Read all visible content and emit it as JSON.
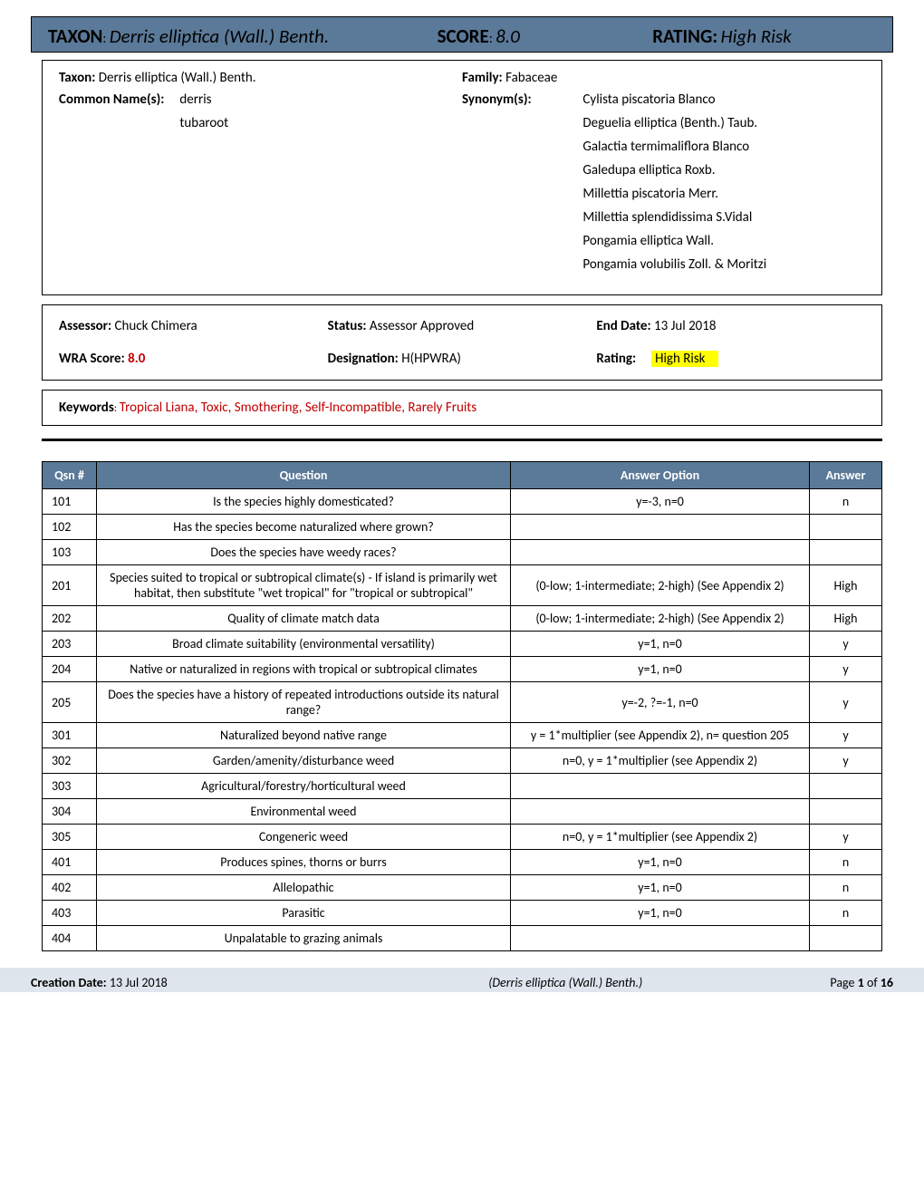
{
  "header": {
    "taxon_label": "TAXON",
    "taxon_value": "Derris elliptica (Wall.) Benth.",
    "score_label": "SCORE",
    "score_value": "8.0",
    "rating_label": "RATING:",
    "rating_value": "High Risk",
    "bg_color": "#5b7998"
  },
  "summary": {
    "taxon_label": "Taxon:",
    "taxon_value": "Derris elliptica (Wall.) Benth.",
    "family_label": "Family:",
    "family_value": "Fabaceae",
    "common_label": "Common Name(s):",
    "common_names": [
      "derris",
      "tubaroot"
    ],
    "synonym_label": "Synonym(s):",
    "synonyms": [
      "Cylista piscatoria Blanco",
      "Deguelia elliptica (Benth.) Taub.",
      "Galactia termimaliflora Blanco",
      "Galedupa elliptica Roxb.",
      "Millettia piscatoria Merr.",
      "Millettia splendidissima S.Vidal",
      "Pongamia elliptica Wall.",
      "Pongamia volubilis Zoll. & Moritzi"
    ]
  },
  "status": {
    "assessor_label": "Assessor:",
    "assessor_value": "Chuck Chimera",
    "status_label": "Status:",
    "status_value": "Assessor Approved",
    "end_date_label": "End Date:",
    "end_date_value": "13 Jul 2018",
    "wra_label": "WRA Score:",
    "wra_value": "8.0",
    "designation_label": "Designation:",
    "designation_value": "H(HPWRA)",
    "rating_label": "Rating:",
    "rating_value": "High Risk",
    "highlight_color": "#ffff00",
    "score_color": "#c00000"
  },
  "keywords": {
    "label": "Keywords",
    "value": "Tropical Liana, Toxic, Smothering, Self-Incompatible, Rarely Fruits",
    "color": "#c00000"
  },
  "table": {
    "header_bg": "#5b7998",
    "header_fg": "#ffffff",
    "columns": [
      "Qsn #",
      "Question",
      "Answer Option",
      "Answer"
    ],
    "rows": [
      [
        "101",
        "Is the species highly domesticated?",
        "y=-3, n=0",
        "n"
      ],
      [
        "102",
        "Has the species become naturalized where grown?",
        "",
        ""
      ],
      [
        "103",
        "Does the species have weedy races?",
        "",
        ""
      ],
      [
        "201",
        "Species suited to tropical or subtropical climate(s) - If island is primarily wet habitat, then substitute \"wet tropical\" for \"tropical or subtropical\"",
        "(0-low; 1-intermediate; 2-high)  (See Appendix 2)",
        "High"
      ],
      [
        "202",
        "Quality of climate match data",
        "(0-low; 1-intermediate; 2-high)  (See Appendix 2)",
        "High"
      ],
      [
        "203",
        "Broad climate suitability (environmental versatility)",
        "y=1, n=0",
        "y"
      ],
      [
        "204",
        "Native or naturalized in regions with tropical or subtropical climates",
        "y=1, n=0",
        "y"
      ],
      [
        "205",
        "Does the species have a history of repeated introductions outside its natural range?",
        "y=-2, ?=-1, n=0",
        "y"
      ],
      [
        "301",
        "Naturalized beyond native range",
        "y = 1*multiplier (see Appendix 2), n= question 205",
        "y"
      ],
      [
        "302",
        "Garden/amenity/disturbance weed",
        "n=0, y = 1*multiplier (see Appendix 2)",
        "y"
      ],
      [
        "303",
        "Agricultural/forestry/horticultural weed",
        "",
        ""
      ],
      [
        "304",
        "Environmental weed",
        "",
        ""
      ],
      [
        "305",
        "Congeneric weed",
        "n=0, y = 1*multiplier (see Appendix 2)",
        "y"
      ],
      [
        "401",
        "Produces spines, thorns or burrs",
        "y=1, n=0",
        "n"
      ],
      [
        "402",
        "Allelopathic",
        "y=1, n=0",
        "n"
      ],
      [
        "403",
        "Parasitic",
        "y=1, n=0",
        "n"
      ],
      [
        "404",
        "Unpalatable to grazing animals",
        "",
        ""
      ]
    ]
  },
  "footer": {
    "creation_label": "Creation Date:",
    "creation_value": "13 Jul 2018",
    "title_value": "(Derris elliptica (Wall.) Benth.)",
    "page_label": "Page",
    "page_current": "1",
    "page_of": "of",
    "page_total": "16",
    "bg_color": "#dee5ec"
  }
}
